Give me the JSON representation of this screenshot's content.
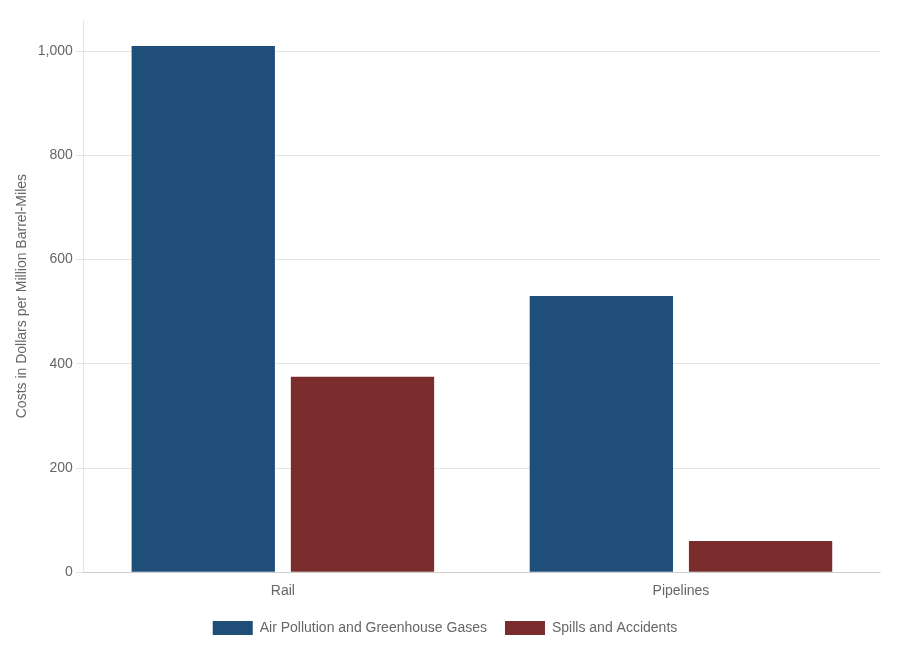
{
  "chart_data": {
    "type": "bar",
    "categories": [
      "Rail",
      "Pipelines"
    ],
    "series": [
      {
        "name": "Air Pollution and Greenhouse Gases",
        "color": "#1F4E79",
        "values": [
          1010,
          530
        ]
      },
      {
        "name": "Spills and Accidents",
        "color": "#7B2D2D",
        "values": [
          375,
          60
        ]
      }
    ],
    "y_label": "Costs in Dollars per Million Barrel-Miles",
    "ylim": [
      0,
      1060
    ],
    "yticks": [
      0,
      200,
      400,
      600,
      800,
      {
        "value": 1000,
        "label": "1,000"
      }
    ],
    "grid": true,
    "legend": "bottom"
  }
}
